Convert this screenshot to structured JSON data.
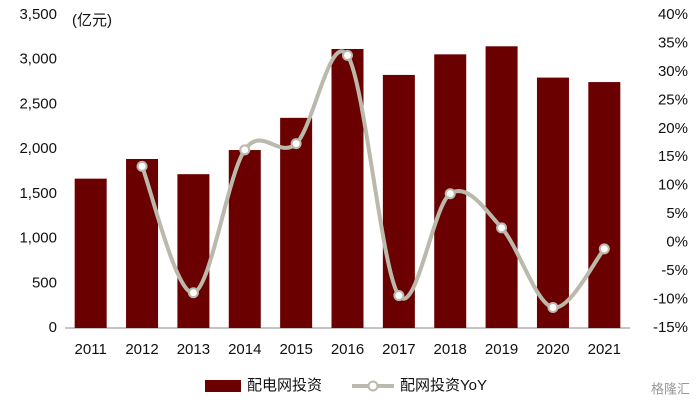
{
  "chart_data": {
    "type": "bar_line",
    "unit_label": "(亿元)",
    "categories": [
      "2011",
      "2012",
      "2013",
      "2014",
      "2015",
      "2016",
      "2017",
      "2018",
      "2019",
      "2020",
      "2021"
    ],
    "series": [
      {
        "name": "配电网投资",
        "type": "bar",
        "color": "#6b0000",
        "values": [
          1670,
          1890,
          1720,
          1990,
          2350,
          3120,
          2830,
          3060,
          3150,
          2800,
          2750
        ]
      },
      {
        "name": "配网投资YoY",
        "type": "line",
        "axis": "y2",
        "color": "#bbb9ab",
        "values": [
          null,
          13.4,
          -8.8,
          16.3,
          17.4,
          32.9,
          -9.3,
          8.6,
          2.6,
          -11.4,
          -1.1
        ]
      }
    ],
    "ylim": [
      0,
      3500
    ],
    "yticks": [
      0,
      {
        "value": 500,
        "label": "500"
      },
      {
        "value": 1000,
        "label": "1,000"
      },
      {
        "value": 1500,
        "label": "1,500"
      },
      {
        "value": 2000,
        "label": "2,000"
      },
      {
        "value": 2500,
        "label": "2,500"
      },
      {
        "value": 3000,
        "label": "3,000"
      },
      {
        "value": 3500,
        "label": "3,500"
      }
    ],
    "y2lim": [
      -15,
      40
    ],
    "y2ticks": [
      {
        "value": -15,
        "label": "-15%"
      },
      {
        "value": -10,
        "label": "-10%"
      },
      {
        "value": -5,
        "label": "-5%"
      },
      {
        "value": 0,
        "label": "0%"
      },
      {
        "value": 5,
        "label": "5%"
      },
      {
        "value": 10,
        "label": "10%"
      },
      {
        "value": 15,
        "label": "15%"
      },
      {
        "value": 20,
        "label": "20%"
      },
      {
        "value": 25,
        "label": "25%"
      },
      {
        "value": 30,
        "label": "30%"
      },
      {
        "value": 35,
        "label": "35%"
      },
      {
        "value": 40,
        "label": "40%"
      }
    ],
    "legend": "bottom",
    "watermark": "格隆汇"
  }
}
